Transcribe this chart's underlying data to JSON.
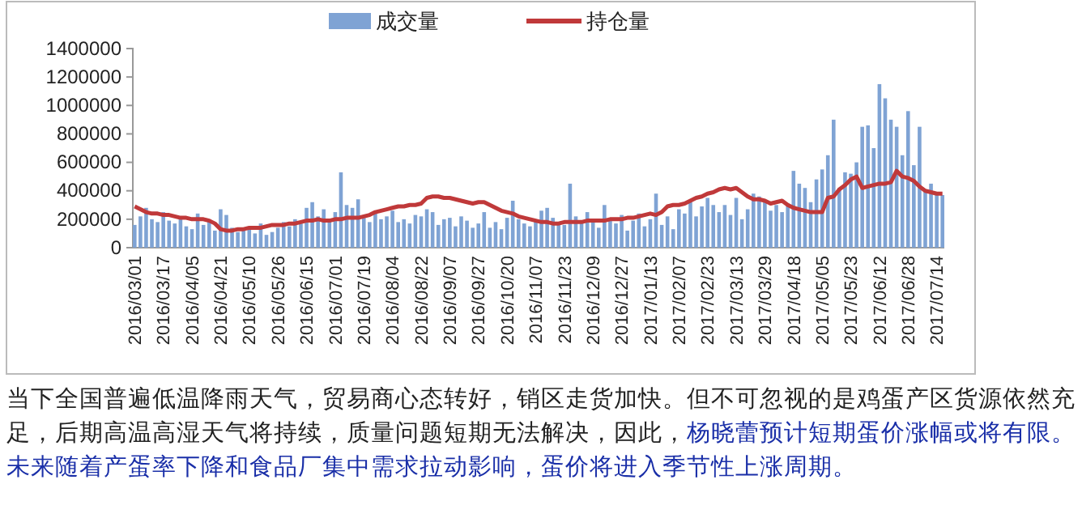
{
  "chart_data": {
    "type": "bar",
    "categories": [
      "2016/03/01",
      null,
      null,
      null,
      null,
      "2016/03/17",
      null,
      null,
      null,
      null,
      "2016/04/05",
      null,
      null,
      null,
      null,
      "2016/04/21",
      null,
      null,
      null,
      null,
      "2016/05/10",
      null,
      null,
      null,
      null,
      "2016/05/26",
      null,
      null,
      null,
      null,
      "2016/06/15",
      null,
      null,
      null,
      null,
      "2016/07/01",
      null,
      null,
      null,
      null,
      "2016/07/19",
      null,
      null,
      null,
      null,
      "2016/08/04",
      null,
      null,
      null,
      null,
      "2016/08/22",
      null,
      null,
      null,
      null,
      "2016/09/07",
      null,
      null,
      null,
      null,
      "2016/09/27",
      null,
      null,
      null,
      null,
      "2016/10/20",
      null,
      null,
      null,
      null,
      "2016/11/07",
      null,
      null,
      null,
      null,
      "2016/11/23",
      null,
      null,
      null,
      null,
      "2016/12/09",
      null,
      null,
      null,
      null,
      "2016/12/27",
      null,
      null,
      null,
      null,
      "2017/01/13",
      null,
      null,
      null,
      null,
      "2017/02/07",
      null,
      null,
      null,
      null,
      "2017/02/23",
      null,
      null,
      null,
      null,
      "2017/03/13",
      null,
      null,
      null,
      null,
      "2017/03/29",
      null,
      null,
      null,
      null,
      "2017/04/18",
      null,
      null,
      null,
      null,
      "2017/05/05",
      null,
      null,
      null,
      null,
      "2017/05/23",
      null,
      null,
      null,
      null,
      "2017/06/12",
      null,
      null,
      null,
      null,
      "2017/06/28",
      null,
      null,
      null,
      null,
      "2017/07/14",
      null
    ],
    "series": [
      {
        "name": "成交量",
        "color": "#7fa3d4",
        "values": [
          160000,
          220000,
          280000,
          200000,
          180000,
          250000,
          190000,
          170000,
          210000,
          150000,
          130000,
          240000,
          160000,
          200000,
          120000,
          270000,
          230000,
          140000,
          110000,
          120000,
          130000,
          100000,
          170000,
          90000,
          110000,
          140000,
          180000,
          150000,
          200000,
          170000,
          280000,
          320000,
          220000,
          270000,
          190000,
          250000,
          530000,
          300000,
          280000,
          340000,
          210000,
          180000,
          240000,
          200000,
          220000,
          260000,
          180000,
          200000,
          170000,
          230000,
          220000,
          270000,
          250000,
          160000,
          200000,
          210000,
          150000,
          220000,
          190000,
          140000,
          170000,
          250000,
          140000,
          180000,
          130000,
          210000,
          330000,
          200000,
          170000,
          150000,
          190000,
          260000,
          280000,
          210000,
          170000,
          160000,
          450000,
          220000,
          180000,
          250000,
          200000,
          140000,
          300000,
          210000,
          170000,
          230000,
          120000,
          190000,
          240000,
          150000,
          200000,
          380000,
          160000,
          220000,
          130000,
          270000,
          240000,
          320000,
          220000,
          290000,
          350000,
          300000,
          250000,
          300000,
          230000,
          350000,
          200000,
          270000,
          380000,
          360000,
          330000,
          260000,
          300000,
          250000,
          310000,
          540000,
          450000,
          420000,
          320000,
          480000,
          550000,
          650000,
          900000,
          420000,
          530000,
          520000,
          600000,
          850000,
          860000,
          700000,
          1150000,
          1050000,
          900000,
          850000,
          650000,
          960000,
          580000,
          850000,
          400000,
          450000,
          380000,
          370000
        ]
      },
      {
        "name": "持仓量",
        "type": "line",
        "color": "#c0393a",
        "values": [
          290000,
          270000,
          250000,
          240000,
          240000,
          230000,
          230000,
          220000,
          210000,
          210000,
          200000,
          200000,
          200000,
          190000,
          170000,
          130000,
          120000,
          120000,
          130000,
          130000,
          140000,
          140000,
          140000,
          150000,
          160000,
          160000,
          160000,
          170000,
          170000,
          180000,
          190000,
          190000,
          200000,
          190000,
          190000,
          200000,
          200000,
          210000,
          210000,
          210000,
          220000,
          230000,
          250000,
          260000,
          270000,
          280000,
          290000,
          290000,
          300000,
          300000,
          310000,
          350000,
          360000,
          360000,
          350000,
          350000,
          340000,
          330000,
          320000,
          310000,
          320000,
          320000,
          300000,
          280000,
          260000,
          250000,
          240000,
          220000,
          210000,
          200000,
          190000,
          180000,
          180000,
          170000,
          170000,
          180000,
          180000,
          180000,
          180000,
          190000,
          190000,
          190000,
          190000,
          200000,
          200000,
          200000,
          210000,
          210000,
          220000,
          230000,
          240000,
          230000,
          250000,
          290000,
          300000,
          300000,
          310000,
          330000,
          350000,
          360000,
          380000,
          390000,
          410000,
          420000,
          410000,
          420000,
          390000,
          360000,
          340000,
          340000,
          330000,
          310000,
          320000,
          330000,
          300000,
          280000,
          270000,
          260000,
          250000,
          250000,
          250000,
          350000,
          360000,
          410000,
          440000,
          480000,
          500000,
          420000,
          430000,
          440000,
          450000,
          450000,
          460000,
          540000,
          500000,
          490000,
          470000,
          430000,
          400000,
          390000,
          380000,
          380000
        ]
      }
    ],
    "ylim": [
      0,
      1400000
    ],
    "yticks": [
      0,
      200000,
      400000,
      600000,
      800000,
      1000000,
      1200000,
      1400000
    ],
    "legend": "top",
    "grid": false,
    "annotations": [
      "当下全国普遍低温降雨天气，贸易商心态转好，销区走货加快。但不可忽视的是鸡蛋产区货源依然充足，后期高温高湿天气将持续，质量问题短期无法解决，因此，",
      "杨晓蕾预计短期蛋价涨幅或将有限。未来随着产蛋率下降和食品厂集中需求拉动影响，蛋价将进入季节性上涨周期。"
    ]
  }
}
